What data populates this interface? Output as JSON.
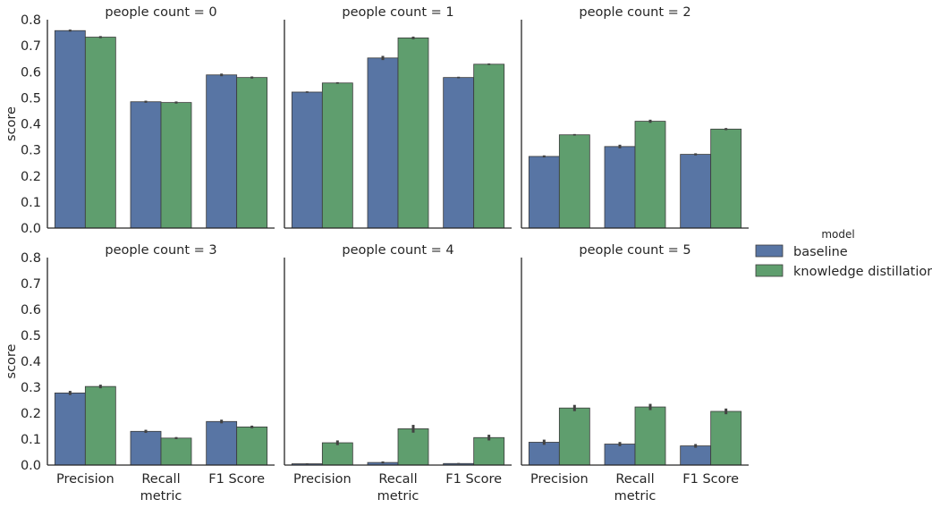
{
  "chart_data": {
    "type": "bar",
    "facet_prefix": "people count = ",
    "xlabel": "metric",
    "ylabel": "score",
    "ylim": [
      0,
      0.8
    ],
    "yticks": [
      "0.0",
      "0.1",
      "0.2",
      "0.3",
      "0.4",
      "0.5",
      "0.6",
      "0.7",
      "0.8"
    ],
    "categories": [
      "Precision",
      "Recall",
      "F1 Score"
    ],
    "legend_title": "model",
    "legend_position": "right",
    "grid": false,
    "colors": {
      "baseline": "#5875a4",
      "knowledge distillation": "#5f9e6e",
      "errorbar": "#424242"
    },
    "facets": [
      {
        "label": "0",
        "series": [
          {
            "name": "baseline",
            "values": [
              0.758,
              0.485,
              0.588
            ],
            "err": [
              0.004,
              0.004,
              0.005
            ]
          },
          {
            "name": "knowledge distillation",
            "values": [
              0.733,
              0.482,
              0.578
            ],
            "err": [
              0.004,
              0.004,
              0.004
            ]
          }
        ]
      },
      {
        "label": "1",
        "series": [
          {
            "name": "baseline",
            "values": [
              0.522,
              0.653,
              0.578
            ],
            "err": [
              0.003,
              0.008,
              0.003
            ]
          },
          {
            "name": "knowledge distillation",
            "values": [
              0.557,
              0.73,
              0.629
            ],
            "err": [
              0.003,
              0.005,
              0.003
            ]
          }
        ]
      },
      {
        "label": "2",
        "series": [
          {
            "name": "baseline",
            "values": [
              0.275,
              0.313,
              0.283
            ],
            "err": [
              0.004,
              0.007,
              0.004
            ]
          },
          {
            "name": "knowledge distillation",
            "values": [
              0.358,
              0.41,
              0.38
            ],
            "err": [
              0.003,
              0.006,
              0.004
            ]
          }
        ]
      },
      {
        "label": "3",
        "series": [
          {
            "name": "baseline",
            "values": [
              0.278,
              0.13,
              0.168
            ],
            "err": [
              0.008,
              0.006,
              0.007
            ]
          },
          {
            "name": "knowledge distillation",
            "values": [
              0.303,
              0.104,
              0.147
            ],
            "err": [
              0.007,
              0.004,
              0.005
            ]
          }
        ]
      },
      {
        "label": "4",
        "series": [
          {
            "name": "baseline",
            "values": [
              0.005,
              0.01,
              0.006
            ],
            "err": [
              0.002,
              0.004,
              0.002
            ]
          },
          {
            "name": "knowledge distillation",
            "values": [
              0.086,
              0.14,
              0.106
            ],
            "err": [
              0.009,
              0.015,
              0.011
            ]
          }
        ]
      },
      {
        "label": "5",
        "series": [
          {
            "name": "baseline",
            "values": [
              0.088,
              0.081,
              0.074
            ],
            "err": [
              0.01,
              0.008,
              0.007
            ]
          },
          {
            "name": "knowledge distillation",
            "values": [
              0.22,
              0.224,
              0.207
            ],
            "err": [
              0.012,
              0.012,
              0.011
            ]
          }
        ]
      }
    ]
  }
}
